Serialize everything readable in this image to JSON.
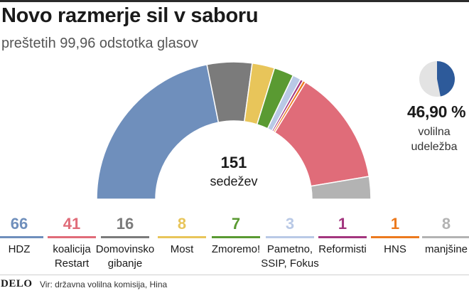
{
  "header": {
    "title": "Novo razmerje sil v saboru",
    "subtitle": "preštetih 99,96 odstotka glasov"
  },
  "center": {
    "seats": "151",
    "seats_label": "sedežev"
  },
  "turnout": {
    "percent_text": "46,90 %",
    "label_line1": "volilna",
    "label_line2": "udeležba",
    "fraction": 0.469,
    "color_filled": "#2d5a9a",
    "color_empty": "#e3e3e3"
  },
  "chart_data": {
    "type": "pie",
    "variant": "parliament-semicircle",
    "total": 151,
    "title": "Novo razmerje sil v saboru",
    "subtitle": "preštetih 99,96 odstotka glasov",
    "series": [
      {
        "name": "HDZ",
        "display": "HDZ",
        "value": 66,
        "color": "#6f8fbc"
      },
      {
        "name": "Domovinsko gibanje",
        "display": "Domovinsko gibanje",
        "value": 16,
        "color": "#7b7b7b"
      },
      {
        "name": "Most",
        "display": "Most",
        "value": 8,
        "color": "#e8c55a"
      },
      {
        "name": "Zmoremo!",
        "display": "Zmoremo!",
        "value": 7,
        "color": "#5a9a32"
      },
      {
        "name": "Pametno, SSIP, Fokus",
        "display": "Pametno, SSIP, Fokus",
        "value": 3,
        "color": "#b9c9e6"
      },
      {
        "name": "Reformisti",
        "display": "Reformisti",
        "value": 1,
        "color": "#a3367f"
      },
      {
        "name": "HNS",
        "display": "HNS",
        "value": 1,
        "color": "#ec7a1e"
      },
      {
        "name": "koalicija Restart",
        "display": "koalicija Restart",
        "value": 41,
        "color": "#e06c79"
      },
      {
        "name": "manjšine",
        "display": "manjšine",
        "value": 8,
        "color": "#b3b3b3"
      }
    ]
  },
  "legend": [
    {
      "num": "66",
      "line1": "HDZ",
      "line2": "",
      "color": "#6f8fbc"
    },
    {
      "num": "41",
      "line1": "koalicija",
      "line2": "Restart",
      "color": "#e06c79"
    },
    {
      "num": "16",
      "line1": "Domovinsko",
      "line2": "gibanje",
      "color": "#7b7b7b"
    },
    {
      "num": "8",
      "line1": "Most",
      "line2": "",
      "color": "#e8c55a"
    },
    {
      "num": "7",
      "line1": "Zmoremo!",
      "line2": "",
      "color": "#5a9a32"
    },
    {
      "num": "3",
      "line1": "Pametno,",
      "line2": "SSIP, Fokus",
      "color": "#b9c9e6"
    },
    {
      "num": "1",
      "line1": "Reformisti",
      "line2": "",
      "color": "#a3367f"
    },
    {
      "num": "1",
      "line1": "HNS",
      "line2": "",
      "color": "#ec7a1e"
    },
    {
      "num": "8",
      "line1": "manjšine",
      "line2": "",
      "color": "#b3b3b3"
    }
  ],
  "footer": {
    "logo": "DELO",
    "source": "Vir: državna volilna komisija, Hina"
  }
}
